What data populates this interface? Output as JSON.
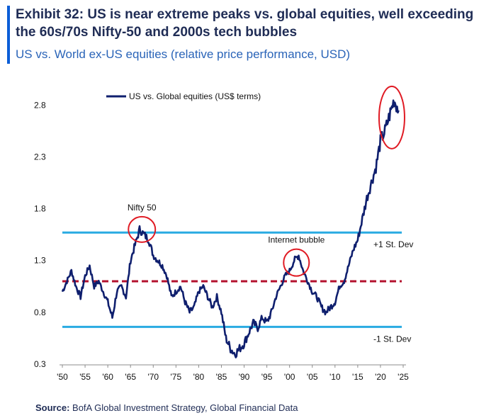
{
  "header": {
    "title_line1": "Exhibit 32: US is near extreme peaks vs. global equities, well exceeding",
    "title_line2": "the 60s/70s Nifty-50 and 2000s tech bubbles",
    "subtitle": "US vs. World ex-US equities (relative price performance, USD)"
  },
  "footer": {
    "source_label": "Source:",
    "source_text": "BofA Global Investment Strategy, Global Financial Data"
  },
  "colors": {
    "series": "#0f1f6e",
    "stdev_lines": "#29abe2",
    "mean_line": "#b3112e",
    "circles": "#e01b24",
    "accent": "#0b5ed7"
  },
  "chart_data": {
    "type": "line",
    "title": "Exhibit 32: US is near extreme peaks vs. global equities, well exceeding the 60s/70s Nifty-50 and 2000s tech bubbles",
    "subtitle": "US vs. World ex-US equities (relative price performance, USD)",
    "xlabel": "",
    "ylabel": "",
    "xlim": [
      1950,
      2025
    ],
    "ylim": [
      0.3,
      3.0
    ],
    "grid": false,
    "legend_position": "top-left",
    "y_ticks": [
      0.3,
      0.8,
      1.3,
      1.8,
      2.3,
      2.8
    ],
    "x_ticks": [
      1950,
      1955,
      1960,
      1965,
      1970,
      1975,
      1980,
      1985,
      1990,
      1995,
      2000,
      2005,
      2010,
      2015,
      2020,
      2025
    ],
    "x_tick_labels": [
      "'50",
      "'55",
      "'60",
      "'65",
      "'70",
      "'75",
      "'80",
      "'85",
      "'90",
      "'95",
      "'00",
      "'05",
      "'10",
      "'15",
      "'20",
      "'25"
    ],
    "series": [
      {
        "name": "US vs. Global equities (US$ terms)",
        "x": [
          1950,
          1951,
          1952,
          1953,
          1954,
          1955,
          1956,
          1957,
          1958,
          1959,
          1960,
          1961,
          1962,
          1963,
          1964,
          1965,
          1966,
          1967,
          1968,
          1969,
          1970,
          1971,
          1972,
          1973,
          1974,
          1975,
          1976,
          1977,
          1978,
          1979,
          1980,
          1981,
          1982,
          1983,
          1984,
          1985,
          1986,
          1987,
          1988,
          1989,
          1990,
          1991,
          1992,
          1993,
          1994,
          1995,
          1996,
          1997,
          1998,
          1999,
          2000,
          2001,
          2002,
          2003,
          2004,
          2005,
          2006,
          2007,
          2008,
          2009,
          2010,
          2011,
          2012,
          2013,
          2014,
          2015,
          2016,
          2017,
          2018,
          2019,
          2020,
          2021,
          2022,
          2023,
          2024
        ],
        "values": [
          1.0,
          1.1,
          1.2,
          1.05,
          0.95,
          1.15,
          1.25,
          1.05,
          1.1,
          1.0,
          0.9,
          0.75,
          1.0,
          1.05,
          0.95,
          1.3,
          1.45,
          1.6,
          1.55,
          1.5,
          1.35,
          1.3,
          1.25,
          1.15,
          0.95,
          1.0,
          1.05,
          0.9,
          0.8,
          0.85,
          1.0,
          1.05,
          0.95,
          0.85,
          0.95,
          0.8,
          0.55,
          0.45,
          0.4,
          0.45,
          0.5,
          0.6,
          0.7,
          0.65,
          0.75,
          0.7,
          0.8,
          0.95,
          1.05,
          1.15,
          1.2,
          1.3,
          1.35,
          1.2,
          1.1,
          1.0,
          0.95,
          0.85,
          0.8,
          0.85,
          0.9,
          1.05,
          1.1,
          1.25,
          1.4,
          1.5,
          1.7,
          1.9,
          2.05,
          2.2,
          2.45,
          2.55,
          2.7,
          2.85,
          2.75
        ]
      }
    ],
    "reference_lines": [
      {
        "label": "+1 St. Dev",
        "value": 1.57,
        "style": "solid"
      },
      {
        "label": "",
        "value": 1.1,
        "style": "dashed"
      },
      {
        "label": "-1 St. Dev",
        "value": 0.66,
        "style": "solid"
      }
    ],
    "annotations": [
      {
        "label": "Nifty 50",
        "x": 1967.5,
        "y": 1.6
      },
      {
        "label": "Internet bubble",
        "x": 2001.5,
        "y": 1.28
      },
      {
        "label": "",
        "x": 2022.5,
        "y": 2.68
      }
    ]
  }
}
